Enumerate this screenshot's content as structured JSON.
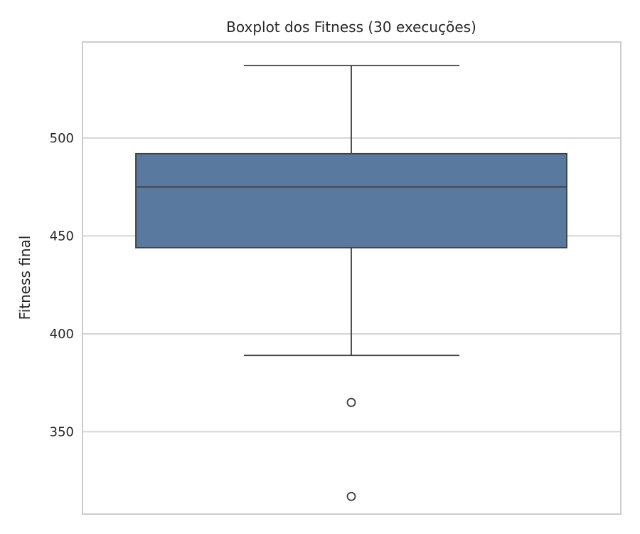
{
  "chart_data": {
    "type": "box",
    "title": "Boxplot dos Fitness (30 execuções)",
    "xlabel": "",
    "ylabel": "Fitness final",
    "ylim": [
      308,
      549
    ],
    "yticks": [
      350,
      400,
      450,
      500
    ],
    "grid": true,
    "series": [
      {
        "whisker_low": 389,
        "q1": 444,
        "median": 475,
        "q3": 492,
        "whisker_high": 537,
        "outliers": [
          365,
          317
        ]
      }
    ],
    "colors": {
      "box_fill": "#59799e",
      "line": "#3f3f3f",
      "grid": "#cccccc"
    }
  }
}
